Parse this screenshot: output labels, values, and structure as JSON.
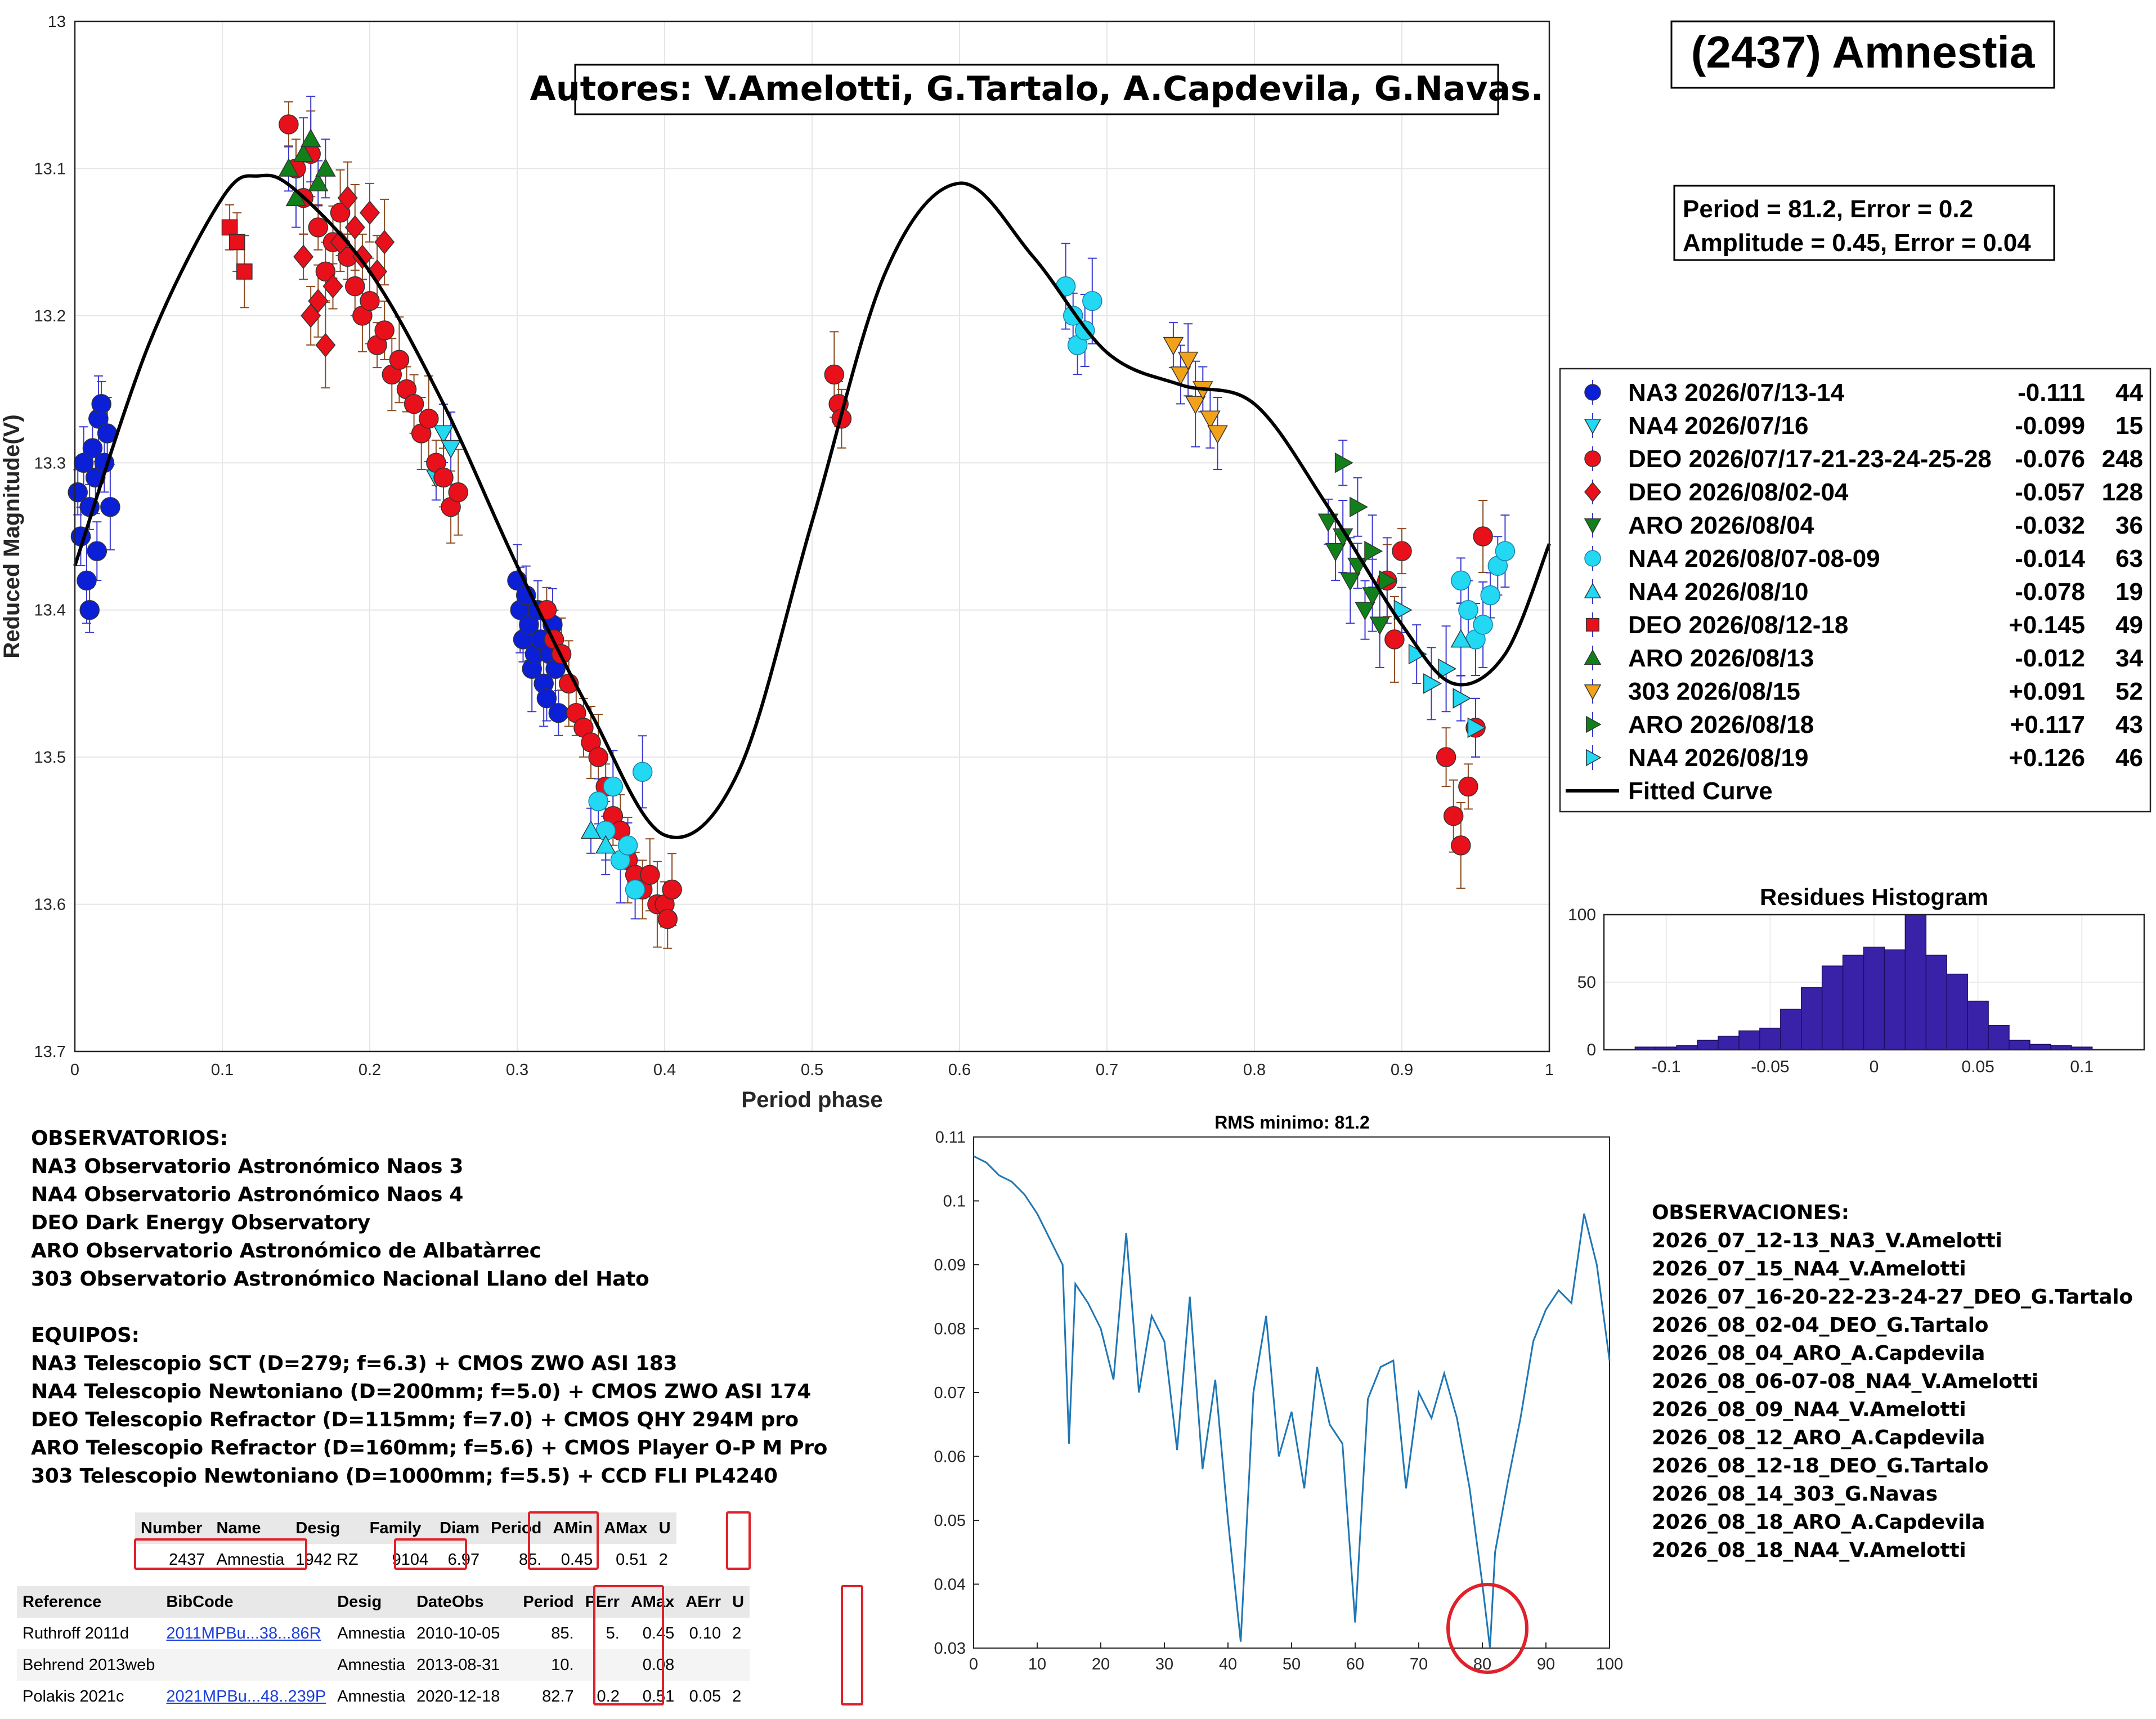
{
  "title_box": "(2437) Amnestia",
  "authors_box": "Autores: V.Amelotti, G.Tartalo, A.Capdevila, G.Navas.",
  "period_box": [
    "Period =  81.2, Error = 0.2",
    "Amplitude = 0.45, Error = 0.04"
  ],
  "observatorios": {
    "heading": "OBSERVATORIOS:",
    "lines": [
      "NA3 Observatorio Astronómico Naos 3",
      "NA4 Observatorio Astronómico Naos 4",
      "DEO Dark Energy Observatory",
      "ARO Observatorio Astronómico de Albatàrrec",
      "303 Observatorio Astronómico Nacional Llano del Hato"
    ]
  },
  "equipos": {
    "heading": "EQUIPOS:",
    "lines": [
      "NA3 Telescopio SCT (D=279; f=6.3) + CMOS ZWO ASI 183",
      "NA4 Telescopio Newtoniano (D=200mm; f=5.0) + CMOS ZWO ASI 174",
      "DEO Telescopio Refractor (D=115mm; f=7.0) + CMOS QHY 294M pro",
      "ARO Telescopio Refractor (D=160mm; f=5.6) + CMOS Player O-P M Pro",
      "303 Telescopio Newtoniano (D=1000mm; f=5.5) + CCD FLI PL4240"
    ]
  },
  "observaciones": {
    "heading": "OBSERVACIONES:",
    "lines": [
      "2026_07_12-13_NA3_V.Amelotti",
      "2026_07_15_NA4_V.Amelotti",
      "2026_07_16-20-22-23-24-27_DEO_G.Tartalo",
      "2026_08_02-04_DEO_G.Tartalo",
      "2026_08_04_ARO_A.Capdevila",
      "2026_08_06-07-08_NA4_V.Amelotti",
      "2026_08_09_NA4_V.Amelotti",
      "2026_08_12_ARO_A.Capdevila",
      "2026_08_12-18_DEO_G.Tartalo",
      "2026_08_14_303_G.Navas",
      "2026_08_18_ARO_A.Capdevila",
      "2026_08_18_NA4_V.Amelotti"
    ]
  },
  "table1": {
    "headers": [
      "Number",
      "Name",
      "Desig",
      "Family",
      "Diam",
      "Period",
      "AMin",
      "AMax",
      "U"
    ],
    "row": [
      "2437",
      "Amnestia",
      "1942 RZ",
      "9104",
      "6.97",
      "85.",
      "0.45",
      "0.51",
      "2"
    ]
  },
  "table2": {
    "headers": [
      "Reference",
      "BibCode",
      "Desig",
      "DateObs",
      "Period",
      "PErr",
      "AMax",
      "AErr",
      "U"
    ],
    "rows": [
      [
        "Ruthroff 2011d",
        "2011MPBu...38...86R",
        "Amnestia",
        "2010-10-05",
        "85.",
        "5.",
        "0.45",
        "0.10",
        "2"
      ],
      [
        "Behrend 2013web",
        "",
        "Amnestia",
        "2013-08-31",
        "10.",
        "",
        "0.08",
        "",
        ""
      ],
      [
        "Polakis 2021c",
        "2021MPBu...48..239P",
        "Amnestia",
        "2020-12-18",
        "82.7",
        "0.2",
        "0.51",
        "0.05",
        "2"
      ]
    ]
  },
  "colors": {
    "blue": "#0a1fd6",
    "cyan": "#22d8f2",
    "red": "#e8101a",
    "green": "#11801b",
    "orange": "#f2a21a",
    "errbar_brown": "#8b4a1e",
    "errbar_blue": "#3b3ad0",
    "hist": "#3a22a8",
    "rms_line": "#1f77b4",
    "circle": "#e0202a"
  },
  "chart_data": [
    {
      "type": "scatter",
      "xlabel": "Period phase",
      "ylabel": "Reduced Magnitude(V)",
      "xlim": [
        0,
        1
      ],
      "ylim": [
        13.7,
        13.0
      ],
      "x_ticks": [
        "0",
        "0.1",
        "0.2",
        "0.3",
        "0.4",
        "0.5",
        "0.6",
        "0.7",
        "0.8",
        "0.9",
        "1"
      ],
      "y_ticks": [
        "13",
        "13.1",
        "13.2",
        "13.3",
        "13.4",
        "13.5",
        "13.6",
        "13.7"
      ],
      "grid": true,
      "legend_position": "right",
      "legend": [
        {
          "name": "NA3 2026/07/13-14",
          "offset": "-0.111",
          "n": "44",
          "marker": "circle",
          "color": "#0a1fd6"
        },
        {
          "name": "NA4 2026/07/16",
          "offset": "-0.099",
          "n": "15",
          "marker": "tri-down",
          "color": "#22d8f2"
        },
        {
          "name": "DEO 2026/07/17-21-23-24-25-28",
          "offset": "-0.076",
          "n": "248",
          "marker": "circle",
          "color": "#e8101a"
        },
        {
          "name": "DEO 2026/08/02-04",
          "offset": "-0.057",
          "n": "128",
          "marker": "diamond",
          "color": "#e8101a"
        },
        {
          "name": "ARO 2026/08/04",
          "offset": "-0.032",
          "n": "36",
          "marker": "tri-down",
          "color": "#11801b"
        },
        {
          "name": "NA4 2026/08/07-08-09",
          "offset": "-0.014",
          "n": "63",
          "marker": "circle",
          "color": "#22d8f2"
        },
        {
          "name": "NA4 2026/08/10",
          "offset": "-0.078",
          "n": "19",
          "marker": "tri-up",
          "color": "#22d8f2"
        },
        {
          "name": "DEO 2026/08/12-18",
          "offset": "+0.145",
          "n": "49",
          "marker": "square",
          "color": "#e8101a"
        },
        {
          "name": "ARO 2026/08/13",
          "offset": "-0.012",
          "n": "34",
          "marker": "tri-up",
          "color": "#11801b"
        },
        {
          "name": "303 2026/08/15",
          "offset": "+0.091",
          "n": "52",
          "marker": "tri-down",
          "color": "#f2a21a"
        },
        {
          "name": "ARO 2026/08/18",
          "offset": "+0.117",
          "n": "43",
          "marker": "tri-right",
          "color": "#11801b"
        },
        {
          "name": "NA4 2026/08/19",
          "offset": "+0.126",
          "n": "46",
          "marker": "tri-right",
          "color": "#22d8f2"
        },
        {
          "name": "Fitted Curve",
          "offset": "",
          "n": "",
          "marker": "line",
          "color": "#000000"
        }
      ],
      "fitted_curve": {
        "x": [
          0.0,
          0.05,
          0.1,
          0.125,
          0.15,
          0.2,
          0.25,
          0.3,
          0.35,
          0.4,
          0.45,
          0.5,
          0.55,
          0.6,
          0.65,
          0.7,
          0.75,
          0.8,
          0.85,
          0.9,
          0.935,
          0.97,
          1.0
        ],
        "y": [
          13.37,
          13.22,
          13.12,
          13.105,
          13.115,
          13.17,
          13.26,
          13.37,
          13.47,
          13.553,
          13.51,
          13.34,
          13.17,
          13.11,
          13.16,
          13.225,
          13.247,
          13.26,
          13.33,
          13.41,
          13.45,
          13.43,
          13.355
        ]
      },
      "series": [
        {
          "name": "NA3 2026/07/13-14",
          "x": [
            0.002,
            0.004,
            0.006,
            0.008,
            0.01,
            0.012,
            0.014,
            0.016,
            0.018,
            0.02,
            0.022,
            0.024,
            0.01,
            0.015,
            0.3,
            0.302,
            0.304,
            0.306,
            0.308,
            0.31,
            0.312,
            0.314,
            0.316,
            0.318,
            0.32,
            0.322,
            0.324,
            0.326,
            0.328
          ],
          "y": [
            13.32,
            13.35,
            13.3,
            13.38,
            13.33,
            13.29,
            13.31,
            13.27,
            13.26,
            13.3,
            13.28,
            13.33,
            13.4,
            13.36,
            13.38,
            13.4,
            13.42,
            13.39,
            13.41,
            13.44,
            13.43,
            13.4,
            13.42,
            13.45,
            13.46,
            13.43,
            13.41,
            13.44,
            13.47
          ]
        },
        {
          "name": "NA4 2026/07/16",
          "x": [
            0.245,
            0.25,
            0.255
          ],
          "y": [
            13.31,
            13.28,
            13.29
          ]
        },
        {
          "name": "DEO 2026/07/17-21-23-24-25-28",
          "x": [
            0.145,
            0.15,
            0.155,
            0.16,
            0.165,
            0.17,
            0.175,
            0.18,
            0.185,
            0.19,
            0.195,
            0.2,
            0.205,
            0.21,
            0.215,
            0.22,
            0.225,
            0.23,
            0.235,
            0.24,
            0.245,
            0.25,
            0.255,
            0.26,
            0.32,
            0.325,
            0.33,
            0.335,
            0.34,
            0.345,
            0.35,
            0.355,
            0.36,
            0.365,
            0.37,
            0.375,
            0.38,
            0.385,
            0.39,
            0.395,
            0.4,
            0.402,
            0.405,
            0.515,
            0.518,
            0.52,
            0.89,
            0.895,
            0.9,
            0.93,
            0.935,
            0.94,
            0.945,
            0.95,
            0.955
          ],
          "y": [
            13.07,
            13.1,
            13.12,
            13.09,
            13.14,
            13.17,
            13.15,
            13.13,
            13.16,
            13.18,
            13.2,
            13.19,
            13.22,
            13.21,
            13.24,
            13.23,
            13.25,
            13.26,
            13.28,
            13.27,
            13.3,
            13.31,
            13.33,
            13.32,
            13.4,
            13.42,
            13.43,
            13.45,
            13.47,
            13.48,
            13.49,
            13.5,
            13.52,
            13.54,
            13.55,
            13.57,
            13.58,
            13.59,
            13.58,
            13.6,
            13.6,
            13.61,
            13.59,
            13.24,
            13.26,
            13.27,
            13.38,
            13.42,
            13.36,
            13.5,
            13.54,
            13.56,
            13.52,
            13.48,
            13.35
          ]
        },
        {
          "name": "DEO 2026/08/02-04",
          "x": [
            0.155,
            0.16,
            0.165,
            0.17,
            0.175,
            0.18,
            0.185,
            0.19,
            0.195,
            0.2,
            0.205,
            0.21
          ],
          "y": [
            13.16,
            13.2,
            13.19,
            13.22,
            13.18,
            13.15,
            13.12,
            13.14,
            13.16,
            13.13,
            13.17,
            13.15
          ]
        },
        {
          "name": "ARO 2026/08/04",
          "x": [
            0.85,
            0.855,
            0.86,
            0.865,
            0.87,
            0.875,
            0.88,
            0.885
          ],
          "y": [
            13.34,
            13.36,
            13.35,
            13.38,
            13.37,
            13.4,
            13.39,
            13.41
          ]
        },
        {
          "name": "NA4 2026/08/07-08-09",
          "x": [
            0.355,
            0.36,
            0.365,
            0.37,
            0.375,
            0.38,
            0.385,
            0.672,
            0.677,
            0.68,
            0.685,
            0.69,
            0.94,
            0.945,
            0.95,
            0.955,
            0.96,
            0.965,
            0.97
          ],
          "y": [
            13.53,
            13.55,
            13.52,
            13.57,
            13.56,
            13.59,
            13.51,
            13.18,
            13.2,
            13.22,
            13.21,
            13.19,
            13.38,
            13.4,
            13.42,
            13.41,
            13.39,
            13.37,
            13.36
          ]
        },
        {
          "name": "NA4 2026/08/10",
          "x": [
            0.35,
            0.36,
            0.94
          ],
          "y": [
            13.55,
            13.56,
            13.42
          ]
        },
        {
          "name": "DEO 2026/08/12-18",
          "x": [
            0.105,
            0.11,
            0.115
          ],
          "y": [
            13.14,
            13.15,
            13.17
          ]
        },
        {
          "name": "ARO 2026/08/13",
          "x": [
            0.145,
            0.15,
            0.155,
            0.16,
            0.165,
            0.17
          ],
          "y": [
            13.1,
            13.12,
            13.09,
            13.08,
            13.11,
            13.1
          ]
        },
        {
          "name": "303 2026/08/15",
          "x": [
            0.745,
            0.75,
            0.755,
            0.76,
            0.765,
            0.77,
            0.775
          ],
          "y": [
            13.22,
            13.24,
            13.23,
            13.26,
            13.25,
            13.27,
            13.28
          ]
        },
        {
          "name": "ARO 2026/08/18",
          "x": [
            0.86,
            0.87,
            0.88,
            0.89
          ],
          "y": [
            13.3,
            13.33,
            13.36,
            13.38
          ]
        },
        {
          "name": "NA4 2026/08/19",
          "x": [
            0.9,
            0.91,
            0.92,
            0.93,
            0.94,
            0.95
          ],
          "y": [
            13.4,
            13.43,
            13.45,
            13.44,
            13.46,
            13.48
          ]
        }
      ]
    },
    {
      "type": "bar",
      "title": "Residues Histogram",
      "xlim": [
        -0.13,
        0.13
      ],
      "ylim": [
        0,
        100
      ],
      "x_ticks": [
        "-0.1",
        "-0.05",
        "0",
        "0.05",
        "0.1"
      ],
      "y_ticks": [
        "0",
        "50",
        "100"
      ],
      "bin_centers": [
        -0.11,
        -0.1,
        -0.09,
        -0.08,
        -0.07,
        -0.06,
        -0.05,
        -0.04,
        -0.03,
        -0.02,
        -0.01,
        0.0,
        0.01,
        0.02,
        0.03,
        0.04,
        0.05,
        0.06,
        0.07,
        0.08,
        0.09,
        0.1
      ],
      "values": [
        2,
        2,
        3,
        7,
        10,
        14,
        16,
        30,
        46,
        62,
        70,
        76,
        74,
        100,
        70,
        56,
        36,
        18,
        7,
        4,
        3,
        2
      ]
    },
    {
      "type": "line",
      "title": "RMS minimo: 81.2",
      "xlim": [
        0,
        100
      ],
      "ylim": [
        0.03,
        0.11
      ],
      "x_ticks": [
        "0",
        "10",
        "20",
        "30",
        "40",
        "50",
        "60",
        "70",
        "80",
        "90",
        "100"
      ],
      "y_ticks": [
        "0.03",
        "0.04",
        "0.05",
        "0.06",
        "0.07",
        "0.08",
        "0.09",
        "0.1",
        "0.11"
      ],
      "x": [
        0,
        2,
        4,
        6,
        8,
        10,
        12,
        14,
        15,
        16,
        18,
        20,
        22,
        24,
        26,
        28,
        30,
        32,
        34,
        36,
        38,
        40,
        42,
        44,
        46,
        48,
        50,
        52,
        54,
        56,
        58,
        60,
        62,
        64,
        66,
        68,
        70,
        72,
        74,
        76,
        78,
        80,
        81.2,
        82,
        84,
        86,
        88,
        90,
        92,
        94,
        96,
        98,
        100
      ],
      "y": [
        0.107,
        0.106,
        0.104,
        0.103,
        0.101,
        0.098,
        0.094,
        0.09,
        0.062,
        0.087,
        0.084,
        0.08,
        0.072,
        0.095,
        0.07,
        0.082,
        0.078,
        0.061,
        0.085,
        0.058,
        0.072,
        0.05,
        0.031,
        0.07,
        0.082,
        0.06,
        0.067,
        0.055,
        0.074,
        0.065,
        0.062,
        0.034,
        0.069,
        0.074,
        0.075,
        0.055,
        0.07,
        0.066,
        0.073,
        0.066,
        0.055,
        0.04,
        0.03,
        0.045,
        0.056,
        0.066,
        0.078,
        0.083,
        0.086,
        0.084,
        0.098,
        0.09,
        0.075
      ]
    }
  ]
}
